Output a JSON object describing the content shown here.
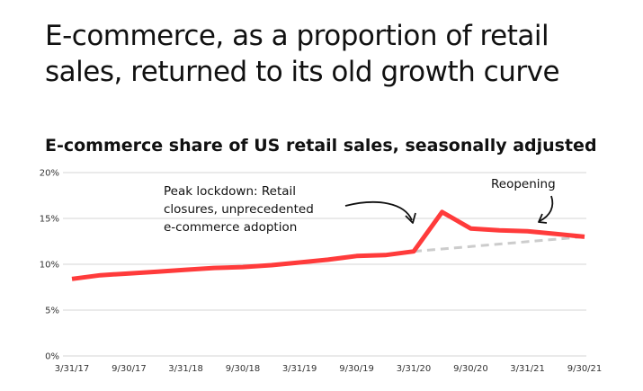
{
  "headline": "E-commerce, as a proportion of retail sales, returned to its old growth curve",
  "chart_data": {
    "type": "line",
    "title": "E-commerce share of US retail sales, seasonally adjusted",
    "xlabel": "",
    "ylabel": "",
    "ylim": [
      0,
      20
    ],
    "yticks": [
      "0%",
      "5%",
      "10%",
      "15%",
      "20%"
    ],
    "xticks": [
      "3/31/17",
      "9/30/17",
      "3/31/18",
      "9/30/18",
      "3/31/19",
      "9/30/19",
      "3/31/20",
      "9/30/20",
      "3/31/21",
      "9/30/21"
    ],
    "grid": true,
    "series": [
      {
        "color": "#ff3b3b",
        "style": "solid",
        "x": [
          "3/31/17",
          "6/30/17",
          "9/30/17",
          "12/31/17",
          "3/31/18",
          "6/30/18",
          "9/30/18",
          "12/31/18",
          "3/31/19",
          "6/30/19",
          "9/30/19",
          "12/31/19",
          "3/31/20",
          "6/30/20",
          "9/30/20",
          "12/31/20",
          "3/31/21",
          "6/30/21",
          "9/30/21"
        ],
        "values": [
          8.4,
          8.8,
          9.0,
          9.2,
          9.4,
          9.6,
          9.7,
          9.9,
          10.2,
          10.5,
          10.9,
          11.0,
          11.4,
          15.7,
          13.9,
          13.7,
          13.6,
          13.3,
          13.0
        ]
      },
      {
        "color": "#cccccc",
        "style": "dashed",
        "x": [
          "3/31/20",
          "9/30/21"
        ],
        "values": [
          11.4,
          13.0
        ]
      }
    ],
    "annotations": [
      {
        "lines": [
          "Peak lockdown: Retail",
          "closures, unprecedented",
          "e-commerce adoption"
        ]
      },
      {
        "lines": [
          "Reopening"
        ]
      }
    ]
  }
}
